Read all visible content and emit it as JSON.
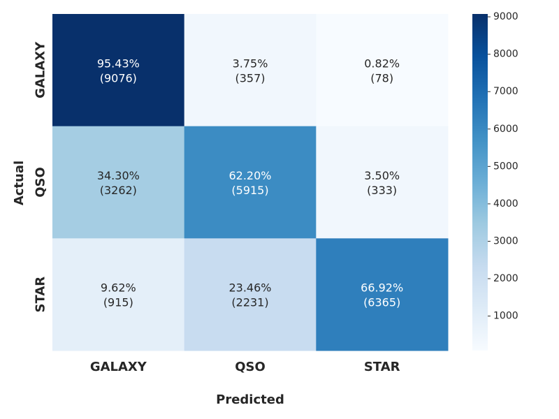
{
  "chart_data": {
    "type": "heatmap",
    "title": "",
    "xlabel": "Predicted",
    "ylabel": "Actual",
    "x_categories": [
      "GALAXY",
      "QSO",
      "STAR"
    ],
    "y_categories": [
      "GALAXY",
      "QSO",
      "STAR"
    ],
    "counts": [
      [
        9076,
        357,
        78
      ],
      [
        3262,
        5915,
        333
      ],
      [
        915,
        2231,
        6365
      ]
    ],
    "percent_labels": [
      [
        "95.43%",
        "3.75%",
        "0.82%"
      ],
      [
        "34.30%",
        "62.20%",
        "3.50%"
      ],
      [
        "9.62%",
        "23.46%",
        "66.92%"
      ]
    ],
    "count_labels": [
      [
        "(9076)",
        "(357)",
        "(78)"
      ],
      [
        "(3262)",
        "(5915)",
        "(333)"
      ],
      [
        "(915)",
        "(2231)",
        "(6365)"
      ]
    ],
    "colorbar": {
      "range": [
        78,
        9076
      ],
      "ticks": [
        1000,
        2000,
        3000,
        4000,
        5000,
        6000,
        7000,
        8000,
        9000
      ],
      "tick_labels": [
        "1000",
        "2000",
        "3000",
        "4000",
        "5000",
        "6000",
        "7000",
        "8000",
        "9000"
      ],
      "colormap": "Blues",
      "position": "right"
    },
    "grid": false
  }
}
